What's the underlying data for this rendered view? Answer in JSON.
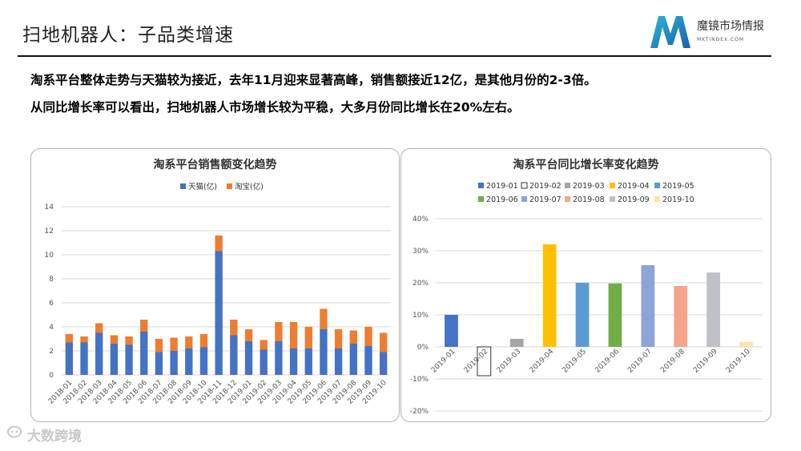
{
  "page": {
    "title": "扫地机器人：子品类增速",
    "summary_line1": "淘系平台整体走势与天猫较为接近，去年11月迎来显著高峰，销售额接近12亿，是其他月份的2-3倍。",
    "summary_line2": "从同比增长率可以看出，扫地机器人市场增长较为平稳，大多月份同比增长在20%左右。"
  },
  "logo": {
    "name": "魔镜市场情报",
    "url": "MKTINDEX.COM",
    "icon": "stylized-m-logo"
  },
  "watermark": {
    "text": "大数跨境",
    "icon": "speech-bubble-icon"
  },
  "colors": {
    "tmall": "#4472C4",
    "taobao": "#ED7D31",
    "rule": "#111111",
    "month_colors": [
      "#4472C4",
      "#FFFFFF",
      "#A5A5A5",
      "#FFC000",
      "#5B9BD5",
      "#70AD47",
      "#8FA3D8",
      "#F4A58A",
      "#C0C0C8",
      "#FFE2A8"
    ]
  },
  "chart_data": [
    {
      "type": "bar",
      "stacked": true,
      "title": "淘系平台销售额变化趋势",
      "categories": [
        "2018-01",
        "2018-02",
        "2018-03",
        "2018-04",
        "2018-05",
        "2018-06",
        "2018-07",
        "2018-08",
        "2018-09",
        "2018-10",
        "2018-11",
        "2018-12",
        "2019-01",
        "2019-02",
        "2019-03",
        "2019-04",
        "2019-05",
        "2019-06",
        "2019-07",
        "2019-08",
        "2019-09",
        "2019-10"
      ],
      "series": [
        {
          "name": "天猫(亿)",
          "values": [
            2.7,
            2.7,
            3.5,
            2.6,
            2.5,
            3.6,
            1.9,
            2.0,
            2.2,
            2.3,
            10.3,
            3.3,
            2.8,
            2.1,
            2.8,
            2.2,
            2.2,
            3.8,
            2.2,
            2.6,
            2.4,
            1.9
          ]
        },
        {
          "name": "淘宝(亿)",
          "values": [
            0.7,
            0.5,
            0.8,
            0.7,
            0.7,
            1.0,
            1.1,
            1.1,
            1.0,
            1.1,
            1.3,
            1.3,
            1.0,
            0.8,
            1.6,
            2.2,
            1.8,
            1.7,
            1.6,
            1.1,
            1.6,
            1.6
          ]
        }
      ],
      "ylim": [
        0,
        14
      ],
      "yticks": [
        "0",
        "2",
        "4",
        "6",
        "8",
        "10",
        "12",
        "14"
      ],
      "legend": "top-center",
      "grid": true
    },
    {
      "type": "bar",
      "title": "淘系平台同比增长率变化趋势",
      "categories": [
        "2019-01",
        "2019-02",
        "2019-03",
        "2019-04",
        "2019-05",
        "2019-06",
        "2019-07",
        "2019-08",
        "2019-09",
        "2019-10"
      ],
      "values": [
        10,
        -9,
        2.5,
        32,
        20,
        19.8,
        25.5,
        19,
        23.2,
        1.5
      ],
      "ylim": [
        -20,
        40
      ],
      "yticks": [
        "-20%",
        "-10%",
        "0%",
        "10%",
        "20%",
        "30%",
        "40%"
      ],
      "legend": "top-center",
      "grid": true
    }
  ]
}
